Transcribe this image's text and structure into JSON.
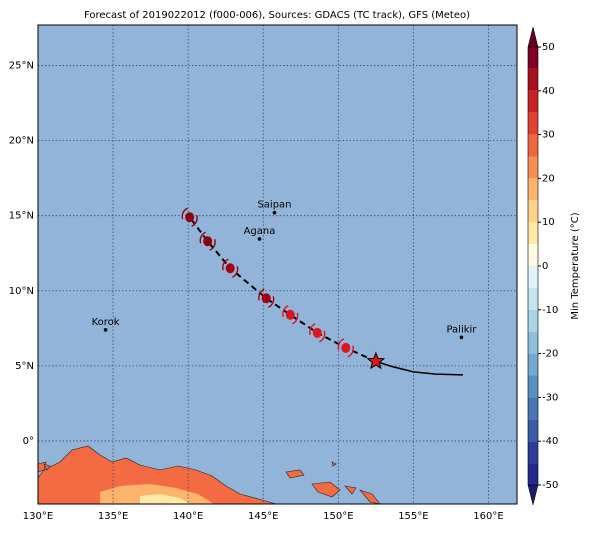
{
  "chart_data": {
    "type": "map",
    "title": "Forecast of 2019022012 (f000-006), Sources: GDACS (TC track), GFS (Meteo)",
    "xlim": [
      130,
      161.9
    ],
    "ylim": [
      -4.2,
      27.7
    ],
    "xticks": [
      {
        "value": 130,
        "label": "130°E"
      },
      {
        "value": 135,
        "label": "135°E"
      },
      {
        "value": 140,
        "label": "140°E"
      },
      {
        "value": 145,
        "label": "145°E"
      },
      {
        "value": 150,
        "label": "150°E"
      },
      {
        "value": 155,
        "label": "155°E"
      },
      {
        "value": 160,
        "label": "160°E"
      }
    ],
    "yticks": [
      {
        "value": 0,
        "label": "0°"
      },
      {
        "value": 5,
        "label": "5°N"
      },
      {
        "value": 10,
        "label": "10°N"
      },
      {
        "value": 15,
        "label": "15°N"
      },
      {
        "value": 20,
        "label": "20°N"
      },
      {
        "value": 25,
        "label": "25°N"
      }
    ],
    "grid": true,
    "cities": [
      {
        "name": "Saipan",
        "lon": 145.75,
        "lat": 15.2
      },
      {
        "name": "Agana",
        "lon": 144.75,
        "lat": 13.45
      },
      {
        "name": "Korok",
        "lon": 134.5,
        "lat": 7.4
      },
      {
        "name": "Palikir",
        "lon": 158.2,
        "lat": 6.9
      }
    ],
    "forecast_track": {
      "lon": [
        152.5,
        150.5,
        148.6,
        146.8,
        145.2,
        142.8,
        141.3,
        140.1
      ],
      "lat": [
        5.3,
        6.2,
        7.2,
        8.4,
        9.5,
        11.5,
        13.3,
        14.9
      ],
      "colors": [
        "#e0141c",
        "#e0141c",
        "#e0141c",
        "#e0141c",
        "#a80010",
        "#a80010",
        "#900010",
        "#900010"
      ]
    },
    "past_track": {
      "lon": [
        152.5,
        153.6,
        155,
        156.5,
        158.3
      ],
      "lat": [
        5.3,
        4.95,
        4.6,
        4.45,
        4.4
      ]
    },
    "colorbar": {
      "label": "Min Temperature (°C)",
      "clim": [
        -50,
        50
      ],
      "ticks": [
        -50,
        -40,
        -30,
        -20,
        -10,
        0,
        10,
        20,
        30,
        40,
        50
      ],
      "colors": [
        "#262a8c",
        "#2e3b98",
        "#3a5ba8",
        "#4a74b4",
        "#5b8fc2",
        "#74a8d0",
        "#8fbfdc",
        "#abd3e6",
        "#c6e4ef",
        "#e0f3f8",
        "#fffbe0",
        "#fee9a8",
        "#fdd38a",
        "#fdb56d",
        "#f98e52",
        "#f16640",
        "#e0422f",
        "#c82227",
        "#a8101f",
        "#800026"
      ]
    }
  }
}
